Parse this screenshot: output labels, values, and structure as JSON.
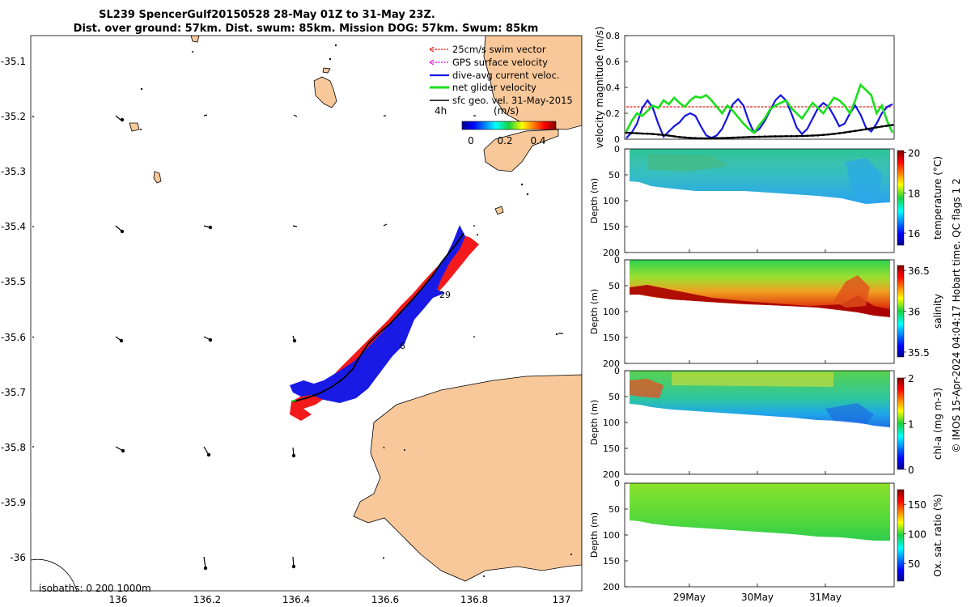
{
  "title": {
    "line1": "SL239 SpencerGulf20150528 28-May 01Z to 31-May 23Z.",
    "line2": "Dist. over ground: 57km. Dist. swum: 85km. Mission DOG: 57km. Swum: 85km"
  },
  "map": {
    "lat_ticks": [
      "-35.1",
      "-35.2",
      "-35.3",
      "-35.4",
      "-35.5",
      "-35.6",
      "-35.7",
      "-35.8",
      "-35.9",
      "-36"
    ],
    "lon_ticks": [
      "136",
      "136.2",
      "136.4",
      "136.6",
      "136.8",
      "137"
    ],
    "legend": [
      {
        "label": "25cm/s swim vector",
        "color": "#e8241f"
      },
      {
        "label": "GPS surface velocity",
        "color": "#e020e0"
      },
      {
        "label": "dive-avg current veloc.",
        "color": "#1414e6"
      },
      {
        "label": "net glider velocity",
        "color": "#19e019"
      },
      {
        "label": "sfc geo. vel. 31-May-2015",
        "color": "#000000"
      }
    ],
    "colorbar": {
      "leftlabel": "4h",
      "unit": "(m/s)",
      "ticks": [
        "0",
        "0.2",
        "0.4"
      ]
    },
    "day_marker": "29",
    "isobaths": "isobaths: 0   200  1000m"
  },
  "chart_data": [
    {
      "type": "line",
      "title": "",
      "ylabel": "velocity magnitude (m/s)",
      "ylim": [
        0,
        0.8
      ],
      "yticks": [
        "0",
        "0.2",
        "0.4",
        "0.6",
        "0.8"
      ],
      "series": [
        {
          "name": "25cm/s swim vector",
          "color": "#e8241f",
          "values": [
            0.25,
            0.25,
            0.25,
            0.25,
            0.25,
            0.25,
            0.25,
            0.25,
            0.25,
            0.25,
            0.25,
            0.25,
            0.25,
            0.25,
            0.25,
            0.25,
            0.25,
            0.25,
            0.25,
            0.25,
            0.25,
            0.25,
            0.25,
            0.25,
            0.25,
            0.25,
            0.25,
            0.25,
            0.25,
            0.25,
            0.25,
            0.25,
            0.25,
            0.25,
            0.25,
            0.25,
            0.25,
            0.25,
            0.25,
            0.25,
            0.25,
            0.25,
            0.25,
            0.25,
            0.25,
            0.25,
            0.25,
            0.25,
            0.25,
            0.25,
            0.25
          ]
        },
        {
          "name": "dive-avg current veloc.",
          "color": "#1414e6",
          "values": [
            0.01,
            0.05,
            0.12,
            0.24,
            0.3,
            0.24,
            0.12,
            0.02,
            0.06,
            0.1,
            0.13,
            0.18,
            0.2,
            0.18,
            0.1,
            0.03,
            0.01,
            0.03,
            0.08,
            0.17,
            0.27,
            0.31,
            0.26,
            0.14,
            0.05,
            0.08,
            0.14,
            0.22,
            0.3,
            0.34,
            0.3,
            0.2,
            0.09,
            0.04,
            0.08,
            0.16,
            0.24,
            0.28,
            0.25,
            0.18,
            0.1,
            0.12,
            0.2,
            0.26,
            0.19,
            0.09,
            0.06,
            0.12,
            0.2,
            0.25,
            0.27
          ]
        },
        {
          "name": "net glider velocity",
          "color": "#19e019",
          "values": [
            0.06,
            0.14,
            0.2,
            0.18,
            0.22,
            0.26,
            0.24,
            0.3,
            0.27,
            0.32,
            0.28,
            0.25,
            0.3,
            0.33,
            0.32,
            0.34,
            0.3,
            0.25,
            0.2,
            0.26,
            0.22,
            0.17,
            0.12,
            0.08,
            0.05,
            0.11,
            0.16,
            0.23,
            0.26,
            0.28,
            0.3,
            0.24,
            0.2,
            0.16,
            0.22,
            0.28,
            0.24,
            0.2,
            0.26,
            0.32,
            0.3,
            0.26,
            0.2,
            0.3,
            0.42,
            0.38,
            0.34,
            0.2,
            0.26,
            0.14,
            0.05
          ]
        },
        {
          "name": "sfc geo. vel. 31-May-2015",
          "color": "#000000",
          "values": [
            0.05,
            0.048,
            0.046,
            0.044,
            0.043,
            0.04,
            0.036,
            0.032,
            0.028,
            0.022,
            0.017,
            0.013,
            0.01,
            0.008,
            0.007,
            0.006,
            0.007,
            0.008,
            0.009,
            0.01,
            0.012,
            0.013,
            0.015,
            0.016,
            0.018,
            0.019,
            0.02,
            0.021,
            0.022,
            0.022,
            0.023,
            0.023,
            0.024,
            0.025,
            0.026,
            0.028,
            0.03,
            0.033,
            0.037,
            0.041,
            0.046,
            0.052,
            0.058,
            0.064,
            0.07,
            0.077,
            0.084,
            0.091,
            0.098,
            0.104,
            0.11
          ]
        }
      ]
    },
    {
      "type": "heatmap",
      "ylabel": "Depth (m)",
      "ylim": [
        0,
        200
      ],
      "yticks": [
        "0",
        "50",
        "100",
        "150",
        "200"
      ],
      "cbar_label": "temperature (°C)",
      "cbar_ticks": [
        "16",
        "18",
        "20"
      ],
      "cbar_range": [
        15.4,
        20.1
      ],
      "cbar_tick_values": [
        16,
        18,
        20
      ]
    },
    {
      "type": "heatmap",
      "ylabel": "Depth (m)",
      "ylim": [
        0,
        200
      ],
      "yticks": [
        "0",
        "50",
        "100",
        "150",
        "200"
      ],
      "cbar_label": "salinity",
      "cbar_ticks": [
        "35.5",
        "36",
        "36.5"
      ],
      "cbar_range": [
        35.44,
        36.56
      ],
      "cbar_tick_values": [
        35.5,
        36,
        36.5
      ]
    },
    {
      "type": "heatmap",
      "ylabel": "Depth (m)",
      "ylim": [
        0,
        200
      ],
      "yticks": [
        "0",
        "50",
        "100",
        "150",
        "200"
      ],
      "cbar_label": "chl-a (mg m-3)",
      "cbar_ticks": [
        "0",
        "1",
        "2"
      ],
      "cbar_range": [
        0,
        2
      ],
      "cbar_tick_values": [
        0,
        1,
        2
      ]
    },
    {
      "type": "heatmap",
      "ylabel": "Depth (m)",
      "ylim": [
        0,
        200
      ],
      "yticks": [
        "0",
        "50",
        "100",
        "150",
        "200"
      ],
      "cbar_label": "Ox. sat. ratio (%)",
      "cbar_ticks": [
        "50",
        "100",
        "150"
      ],
      "cbar_range": [
        20,
        175
      ],
      "cbar_tick_values": [
        50,
        100,
        150
      ]
    }
  ],
  "time_axis": {
    "ticks": [
      "29May",
      "30May",
      "31May"
    ]
  },
  "footer": "© IMOS 15-Apr-2024 04:04:17 Hobart time. QC flags 1  2"
}
